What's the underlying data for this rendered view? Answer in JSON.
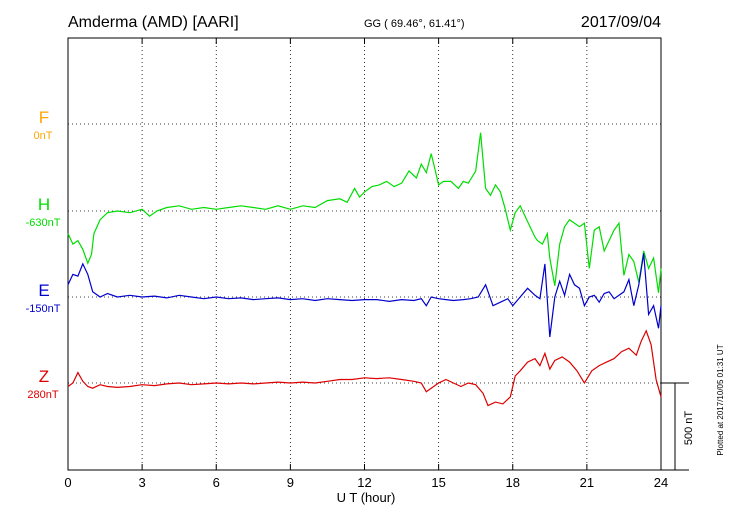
{
  "header": {
    "station": "Amderma (AMD)  [AARI]",
    "coords": "GG ( 69.46°,  61.41°)",
    "date": "2017/09/04"
  },
  "footer": {
    "plotted": "Plotted at 2017/10/05 01:31  UT"
  },
  "scale_bar": {
    "label": "500 nT",
    "value_nT": 500
  },
  "colors": {
    "F": "#FFA500",
    "H": "#00DD00",
    "E": "#0000CC",
    "Z": "#DD0000",
    "frame": "#000000"
  },
  "chart_data": {
    "type": "line",
    "xlabel": "U T (hour)",
    "xlim": [
      0,
      24
    ],
    "xticks": [
      "0",
      "3",
      "6",
      "9",
      "12",
      "15",
      "18",
      "21",
      "24"
    ],
    "series": [
      {
        "name": "F",
        "baseline_label": "0nT",
        "baseline_nT": 0,
        "x": [],
        "y": []
      },
      {
        "name": "H",
        "baseline_label": "-630nT",
        "baseline_nT": -630,
        "x": [
          0,
          0.2,
          0.4,
          0.6,
          0.8,
          0.95,
          1.05,
          1.3,
          1.6,
          2.0,
          2.5,
          3.0,
          3.3,
          3.6,
          4.0,
          4.5,
          5.0,
          5.5,
          6.0,
          6.5,
          7.0,
          7.5,
          8.0,
          8.5,
          9.0,
          9.5,
          10.0,
          10.5,
          11.0,
          11.3,
          11.6,
          11.8,
          12.0,
          12.3,
          12.6,
          12.9,
          13.2,
          13.5,
          13.8,
          14.1,
          14.3,
          14.5,
          14.7,
          14.9,
          15.0,
          15.2,
          15.5,
          15.8,
          16.0,
          16.2,
          16.5,
          16.7,
          16.9,
          17.1,
          17.3,
          17.5,
          17.7,
          17.9,
          18.1,
          18.3,
          18.5,
          18.7,
          18.9,
          19.0,
          19.2,
          19.4,
          19.5,
          19.7,
          19.9,
          20.1,
          20.3,
          20.5,
          20.7,
          20.9,
          21.1,
          21.3,
          21.5,
          21.7,
          21.9,
          22.1,
          22.3,
          22.5,
          22.7,
          22.9,
          23.1,
          23.3,
          23.5,
          23.7,
          23.9,
          24.0
        ],
        "y": [
          -760,
          -820,
          -800,
          -850,
          -930,
          -880,
          -760,
          -680,
          -640,
          -630,
          -640,
          -620,
          -660,
          -630,
          -610,
          -600,
          -620,
          -610,
          -620,
          -610,
          -600,
          -610,
          -620,
          -600,
          -620,
          -600,
          -610,
          -570,
          -560,
          -580,
          -500,
          -550,
          -520,
          -490,
          -480,
          -460,
          -490,
          -470,
          -400,
          -440,
          -360,
          -410,
          -300,
          -420,
          -480,
          -460,
          -460,
          -500,
          -460,
          -470,
          -400,
          -180,
          -500,
          -540,
          -480,
          -520,
          -620,
          -740,
          -640,
          -600,
          -660,
          -720,
          -780,
          -800,
          -820,
          -760,
          -900,
          -1060,
          -820,
          -720,
          -680,
          -700,
          -720,
          -700,
          -960,
          -740,
          -720,
          -860,
          -800,
          -740,
          -700,
          -1000,
          -880,
          -920,
          -1040,
          -860,
          -960,
          -900,
          -1100,
          -960
        ]
      },
      {
        "name": "E",
        "baseline_label": "-150nT",
        "baseline_nT": -150,
        "x": [
          0,
          0.2,
          0.4,
          0.6,
          0.8,
          1.0,
          1.3,
          1.6,
          2.0,
          2.5,
          3.0,
          3.5,
          4.0,
          4.5,
          5.0,
          5.5,
          6.0,
          6.5,
          7.0,
          7.5,
          8.0,
          8.5,
          9.0,
          9.5,
          10.0,
          10.5,
          11.0,
          11.5,
          12.0,
          12.5,
          13.0,
          13.5,
          14.0,
          14.3,
          14.5,
          14.7,
          15.0,
          15.3,
          15.6,
          16.0,
          16.3,
          16.6,
          16.9,
          17.2,
          17.5,
          17.8,
          18.0,
          18.3,
          18.6,
          18.9,
          19.1,
          19.3,
          19.5,
          19.7,
          19.9,
          20.1,
          20.3,
          20.5,
          20.7,
          20.9,
          21.1,
          21.3,
          21.5,
          21.7,
          21.9,
          22.1,
          22.3,
          22.5,
          22.7,
          22.9,
          23.1,
          23.3,
          23.5,
          23.7,
          23.9,
          24.0
        ],
        "y": [
          -80,
          -20,
          -30,
          40,
          -20,
          -120,
          -150,
          -130,
          -150,
          -140,
          -150,
          -145,
          -155,
          -140,
          -150,
          -160,
          -150,
          -160,
          -155,
          -165,
          -160,
          -155,
          -165,
          -160,
          -170,
          -160,
          -165,
          -170,
          -165,
          -165,
          -175,
          -165,
          -170,
          -160,
          -200,
          -150,
          -160,
          -165,
          -170,
          -165,
          -160,
          -150,
          -80,
          -200,
          -180,
          -160,
          -200,
          -150,
          -100,
          -140,
          -160,
          40,
          -380,
          -150,
          -60,
          -140,
          -20,
          -80,
          -100,
          -200,
          -150,
          -140,
          -180,
          -130,
          -120,
          -160,
          -140,
          -120,
          -50,
          -200,
          -80,
          100,
          -250,
          -200,
          -330,
          -200
        ]
      },
      {
        "name": "Z",
        "baseline_label": "280nT",
        "baseline_nT": 280,
        "x": [
          0,
          0.2,
          0.4,
          0.6,
          0.8,
          1.0,
          1.3,
          1.6,
          2.0,
          2.5,
          3.0,
          3.5,
          4.0,
          4.5,
          5.0,
          5.5,
          6.0,
          6.5,
          7.0,
          7.5,
          8.0,
          8.5,
          9.0,
          9.5,
          10.0,
          10.5,
          11.0,
          11.5,
          12.0,
          12.5,
          13.0,
          13.5,
          14.0,
          14.3,
          14.5,
          14.7,
          15.0,
          15.3,
          15.6,
          15.9,
          16.2,
          16.5,
          16.8,
          17.0,
          17.3,
          17.6,
          17.9,
          18.1,
          18.3,
          18.6,
          18.9,
          19.1,
          19.3,
          19.5,
          19.7,
          20.0,
          20.3,
          20.6,
          20.9,
          21.2,
          21.5,
          21.8,
          22.1,
          22.4,
          22.7,
          23.0,
          23.2,
          23.4,
          23.6,
          23.8,
          24.0
        ],
        "y": [
          260,
          280,
          340,
          290,
          260,
          250,
          270,
          260,
          255,
          260,
          270,
          265,
          275,
          280,
          270,
          275,
          280,
          275,
          280,
          275,
          280,
          285,
          280,
          285,
          280,
          290,
          300,
          300,
          310,
          305,
          310,
          300,
          290,
          280,
          230,
          250,
          280,
          300,
          280,
          260,
          280,
          270,
          220,
          150,
          170,
          160,
          200,
          320,
          350,
          400,
          420,
          380,
          450,
          360,
          410,
          430,
          400,
          350,
          280,
          350,
          380,
          400,
          420,
          460,
          480,
          440,
          520,
          580,
          500,
          300,
          200
        ]
      }
    ]
  }
}
